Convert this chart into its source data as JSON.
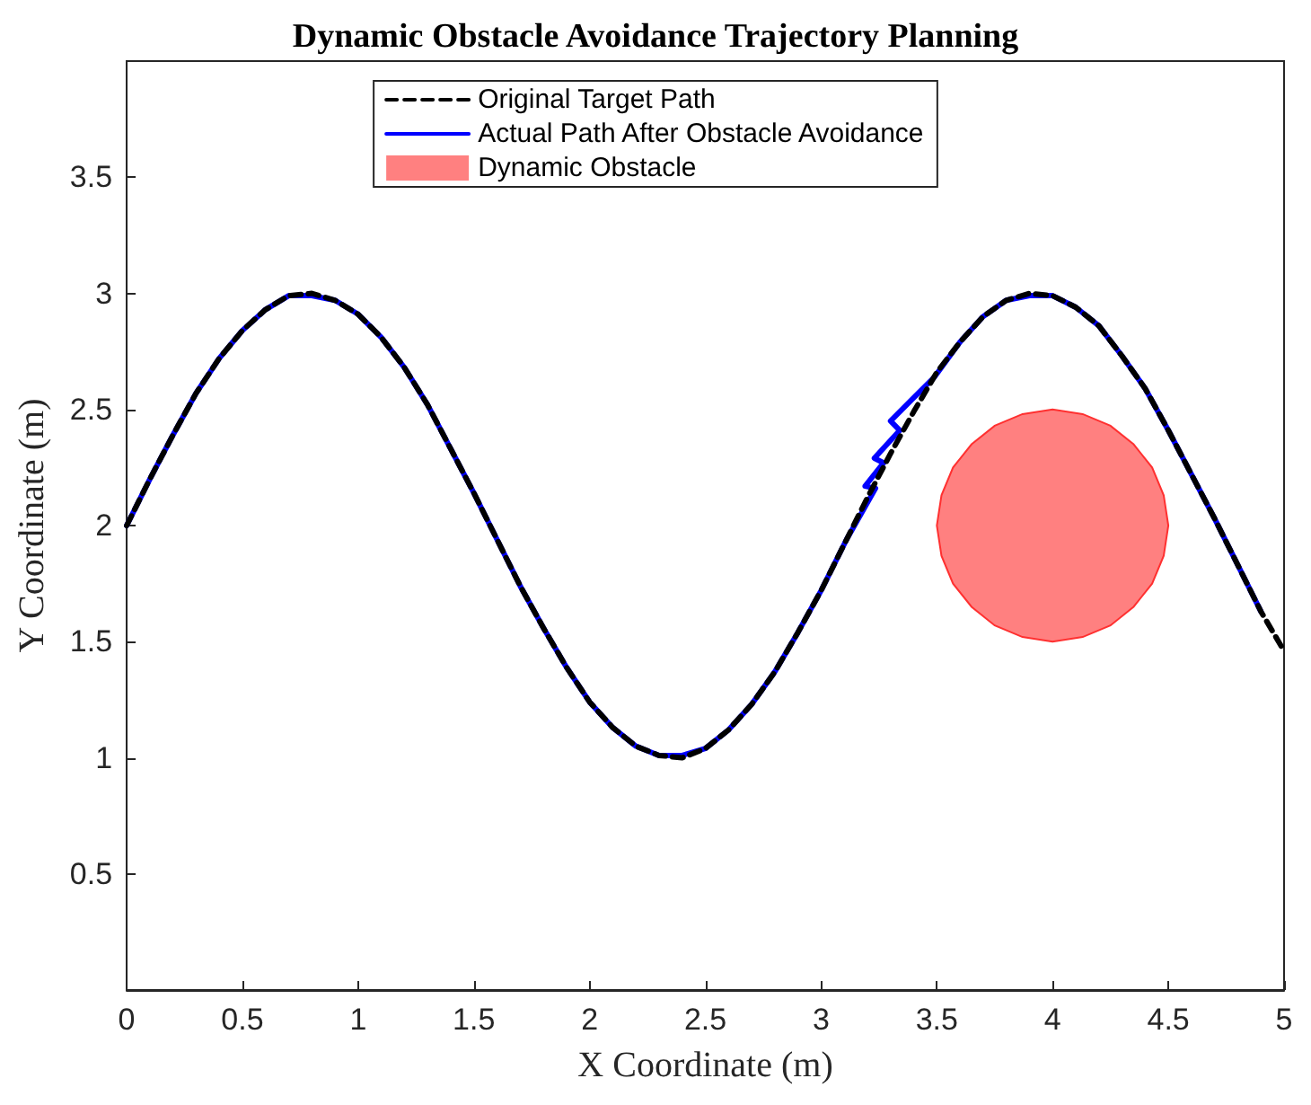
{
  "chart_data": {
    "type": "line",
    "title": "Dynamic Obstacle Avoidance Trajectory Planning",
    "xlabel": "X Coordinate (m)",
    "ylabel": "Y Coordinate (m)",
    "xlim": [
      0,
      5
    ],
    "xticks": [
      0,
      0.5,
      1,
      1.5,
      2,
      2.5,
      3,
      3.5,
      4,
      4.5,
      5
    ],
    "ylim": [
      0,
      4
    ],
    "yticks": [
      0.5,
      1,
      1.5,
      2,
      2.5,
      3,
      3.5
    ],
    "grid": false,
    "legend": "top",
    "marker": "none",
    "series": [
      {
        "name": "Original Target Path",
        "color": "#000000",
        "line_style": "dashed",
        "x": [
          0,
          0.1,
          0.2,
          0.3,
          0.4,
          0.5,
          0.6,
          0.7,
          0.8,
          0.9,
          1.0,
          1.1,
          1.2,
          1.3,
          1.4,
          1.5,
          1.6,
          1.7,
          1.8,
          1.9,
          2.0,
          2.1,
          2.2,
          2.3,
          2.4,
          2.5,
          2.6,
          2.7,
          2.8,
          2.9,
          3.0,
          3.1,
          3.2,
          3.3,
          3.4,
          3.5,
          3.6,
          3.7,
          3.8,
          3.9,
          4.0,
          4.1,
          4.2,
          4.3,
          4.4,
          4.5,
          4.6,
          4.7,
          4.8,
          4.9,
          5.0
        ],
        "values": [
          2.0,
          2.2,
          2.39,
          2.57,
          2.72,
          2.84,
          2.93,
          2.99,
          3.0,
          2.97,
          2.91,
          2.81,
          2.68,
          2.52,
          2.33,
          2.14,
          1.94,
          1.74,
          1.56,
          1.39,
          1.24,
          1.13,
          1.05,
          1.01,
          1.0,
          1.04,
          1.12,
          1.23,
          1.37,
          1.54,
          1.72,
          1.92,
          2.12,
          2.31,
          2.49,
          2.66,
          2.79,
          2.9,
          2.97,
          3.0,
          2.99,
          2.94,
          2.86,
          2.73,
          2.59,
          2.41,
          2.22,
          2.03,
          1.83,
          1.63,
          1.46
        ]
      },
      {
        "name": "Actual Path After Obstacle Avoidance",
        "color": "#0000ff",
        "line_style": "solid",
        "x": [
          0,
          0.1,
          0.2,
          0.3,
          0.4,
          0.5,
          0.6,
          0.7,
          0.8,
          0.9,
          1.0,
          1.1,
          1.2,
          1.3,
          1.4,
          1.5,
          1.6,
          1.7,
          1.8,
          1.9,
          2.0,
          2.1,
          2.2,
          2.3,
          2.4,
          2.5,
          2.6,
          2.7,
          2.8,
          2.9,
          3.0,
          3.11,
          3.235,
          3.19,
          3.27,
          3.23,
          3.34,
          3.3,
          3.49,
          3.6,
          3.7,
          3.8,
          3.9,
          4.0,
          4.1,
          4.2,
          4.3,
          4.4,
          4.5,
          4.6,
          4.7,
          4.8,
          4.9
        ],
        "values": [
          2.0,
          2.2,
          2.39,
          2.57,
          2.72,
          2.84,
          2.93,
          2.99,
          2.99,
          2.97,
          2.91,
          2.81,
          2.68,
          2.52,
          2.33,
          2.14,
          1.94,
          1.74,
          1.56,
          1.39,
          1.24,
          1.13,
          1.05,
          1.01,
          1.01,
          1.04,
          1.12,
          1.23,
          1.37,
          1.54,
          1.72,
          1.94,
          2.16,
          2.17,
          2.27,
          2.29,
          2.41,
          2.45,
          2.64,
          2.79,
          2.9,
          2.97,
          2.99,
          2.99,
          2.94,
          2.86,
          2.73,
          2.59,
          2.41,
          2.22,
          2.03,
          1.83,
          1.63
        ]
      },
      {
        "name": "Dynamic Obstacle",
        "type": "area",
        "color": "#ff8080",
        "x": [
          4.5,
          4.48,
          4.43,
          4.35,
          4.25,
          4.13,
          4.0,
          3.87,
          3.75,
          3.65,
          3.57,
          3.52,
          3.5,
          3.52,
          3.57,
          3.65,
          3.75,
          3.87,
          4.0,
          4.13,
          4.25,
          4.35,
          4.43,
          4.48
        ],
        "values": [
          2.0,
          2.13,
          2.25,
          2.35,
          2.43,
          2.48,
          2.5,
          2.48,
          2.43,
          2.35,
          2.25,
          2.13,
          2.0,
          1.87,
          1.75,
          1.65,
          1.57,
          1.52,
          1.5,
          1.52,
          1.57,
          1.65,
          1.75,
          1.87
        ]
      }
    ]
  }
}
